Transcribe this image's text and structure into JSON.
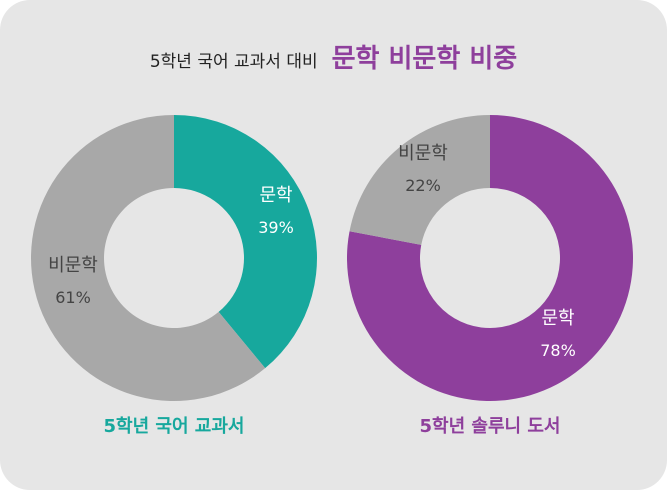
{
  "title": {
    "subtitle": "5학년 국어 교과서 대비",
    "main": "문학 비문학 비중"
  },
  "colors": {
    "teal": "#17a89d",
    "purple": "#8e3f9c",
    "gray": "#a8a8a8",
    "text_dark": "#444444",
    "text_light": "#ffffff"
  },
  "chart_data": [
    {
      "type": "pie",
      "caption": "5학년 국어 교과서",
      "slices": [
        {
          "label": "문학",
          "percent_label": "39%",
          "value": 39,
          "color": "#17a89d"
        },
        {
          "label": "비문학",
          "percent_label": "61%",
          "value": 61,
          "color": "#a8a8a8"
        }
      ]
    },
    {
      "type": "pie",
      "caption": "5학년 솔루니 도서",
      "slices": [
        {
          "label": "문학",
          "percent_label": "78%",
          "value": 78,
          "color": "#8e3f9c"
        },
        {
          "label": "비문학",
          "percent_label": "22%",
          "value": 22,
          "color": "#a8a8a8"
        }
      ]
    }
  ]
}
